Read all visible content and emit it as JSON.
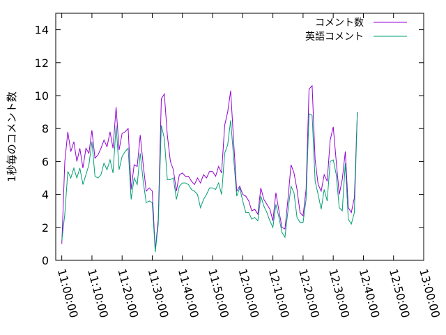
{
  "chart_data": {
    "type": "line",
    "title": "",
    "xlabel": "",
    "ylabel": "1秒毎のコメント数",
    "xlim": [
      "10:58:00",
      "13:00:00"
    ],
    "ylim": [
      0,
      15
    ],
    "yticks": [
      0,
      2,
      4,
      6,
      8,
      10,
      12,
      14
    ],
    "xticks": [
      "11:00:00",
      "11:10:00",
      "11:20:00",
      "11:30:00",
      "11:40:00",
      "11:50:00",
      "12:00:00",
      "12:10:00",
      "12:20:00",
      "12:30:00",
      "12:40:00",
      "12:50:00",
      "13:00:00"
    ],
    "grid": false,
    "legend_position": "top-right",
    "series": [
      {
        "name": "コメント数",
        "color": "#9400d3",
        "points": [
          [
            "11:00:00",
            1.0
          ],
          [
            "11:01:00",
            6.0
          ],
          [
            "11:02:00",
            7.8
          ],
          [
            "11:03:00",
            6.6
          ],
          [
            "11:04:00",
            7.2
          ],
          [
            "11:05:00",
            6.0
          ],
          [
            "11:06:00",
            6.8
          ],
          [
            "11:07:00",
            5.6
          ],
          [
            "11:08:00",
            6.8
          ],
          [
            "11:09:00",
            6.5
          ],
          [
            "11:10:00",
            7.9
          ],
          [
            "11:11:00",
            6.2
          ],
          [
            "11:12:00",
            6.4
          ],
          [
            "11:13:00",
            6.8
          ],
          [
            "11:14:00",
            7.3
          ],
          [
            "11:15:00",
            6.9
          ],
          [
            "11:16:00",
            7.8
          ],
          [
            "11:17:00",
            6.8
          ],
          [
            "11:18:00",
            9.3
          ],
          [
            "11:19:00",
            6.7
          ],
          [
            "11:20:00",
            7.7
          ],
          [
            "11:21:00",
            7.8
          ],
          [
            "11:22:00",
            8.0
          ],
          [
            "11:23:00",
            4.3
          ],
          [
            "11:24:00",
            5.8
          ],
          [
            "11:25:00",
            5.7
          ],
          [
            "11:26:00",
            7.6
          ],
          [
            "11:27:00",
            5.8
          ],
          [
            "11:28:00",
            4.2
          ],
          [
            "11:29:00",
            4.4
          ],
          [
            "11:30:00",
            4.2
          ],
          [
            "11:31:00",
            0.6
          ],
          [
            "11:32:00",
            2.5
          ],
          [
            "11:33:00",
            9.8
          ],
          [
            "11:34:00",
            10.1
          ],
          [
            "11:35:00",
            7.6
          ],
          [
            "11:36:00",
            6.0
          ],
          [
            "11:37:00",
            5.5
          ],
          [
            "11:38:00",
            4.2
          ],
          [
            "11:39:00",
            5.2
          ],
          [
            "11:40:00",
            5.3
          ],
          [
            "11:41:00",
            5.1
          ],
          [
            "11:42:00",
            5.1
          ],
          [
            "11:43:00",
            4.8
          ],
          [
            "11:44:00",
            4.6
          ],
          [
            "11:45:00",
            5.0
          ],
          [
            "11:46:00",
            4.7
          ],
          [
            "11:47:00",
            5.2
          ],
          [
            "11:48:00",
            5.0
          ],
          [
            "11:49:00",
            5.4
          ],
          [
            "11:50:00",
            5.4
          ],
          [
            "11:51:00",
            5.1
          ],
          [
            "11:52:00",
            5.7
          ],
          [
            "11:53:00",
            5.3
          ],
          [
            "11:54:00",
            8.2
          ],
          [
            "11:55:00",
            9.0
          ],
          [
            "11:56:00",
            10.3
          ],
          [
            "11:57:00",
            7.2
          ],
          [
            "11:58:00",
            4.2
          ],
          [
            "11:59:00",
            4.5
          ],
          [
            "12:00:00",
            4.0
          ],
          [
            "12:01:00",
            3.9
          ],
          [
            "12:02:00",
            3.6
          ],
          [
            "12:03:00",
            3.0
          ],
          [
            "12:04:00",
            3.1
          ],
          [
            "12:05:00",
            2.8
          ],
          [
            "12:06:00",
            4.4
          ],
          [
            "12:07:00",
            3.7
          ],
          [
            "12:08:00",
            3.4
          ],
          [
            "12:09:00",
            3.1
          ],
          [
            "12:10:00",
            2.4
          ],
          [
            "12:11:00",
            4.1
          ],
          [
            "12:12:00",
            3.0
          ],
          [
            "12:13:00",
            2.0
          ],
          [
            "12:14:00",
            1.9
          ],
          [
            "12:15:00",
            3.7
          ],
          [
            "12:16:00",
            5.8
          ],
          [
            "12:17:00",
            5.3
          ],
          [
            "12:18:00",
            4.3
          ],
          [
            "12:19:00",
            2.9
          ],
          [
            "12:20:00",
            2.7
          ],
          [
            "12:21:00",
            4.3
          ],
          [
            "12:22:00",
            10.4
          ],
          [
            "12:23:00",
            10.6
          ],
          [
            "12:24:00",
            6.1
          ],
          [
            "12:25:00",
            4.6
          ],
          [
            "12:26:00",
            4.2
          ],
          [
            "12:27:00",
            5.2
          ],
          [
            "12:28:00",
            4.8
          ],
          [
            "12:29:00",
            7.3
          ],
          [
            "12:30:00",
            8.1
          ],
          [
            "12:31:00",
            6.0
          ],
          [
            "12:32:00",
            4.0
          ],
          [
            "12:33:00",
            4.9
          ],
          [
            "12:34:00",
            6.6
          ],
          [
            "12:35:00",
            3.2
          ],
          [
            "12:36:00",
            2.9
          ],
          [
            "12:37:00",
            3.8
          ],
          [
            "12:38:00",
            9.0
          ]
        ]
      },
      {
        "name": "英語コメント",
        "color": "#009e73",
        "points": [
          [
            "11:00:00",
            1.2
          ],
          [
            "11:01:00",
            2.8
          ],
          [
            "11:02:00",
            5.4
          ],
          [
            "11:03:00",
            5.0
          ],
          [
            "11:04:00",
            5.6
          ],
          [
            "11:05:00",
            5.0
          ],
          [
            "11:06:00",
            5.6
          ],
          [
            "11:07:00",
            4.6
          ],
          [
            "11:08:00",
            5.2
          ],
          [
            "11:09:00",
            5.8
          ],
          [
            "11:10:00",
            7.2
          ],
          [
            "11:11:00",
            5.1
          ],
          [
            "11:12:00",
            5.0
          ],
          [
            "11:13:00",
            5.2
          ],
          [
            "11:14:00",
            5.9
          ],
          [
            "11:15:00",
            5.5
          ],
          [
            "11:16:00",
            6.1
          ],
          [
            "11:17:00",
            5.3
          ],
          [
            "11:18:00",
            8.2
          ],
          [
            "11:19:00",
            5.5
          ],
          [
            "11:20:00",
            6.3
          ],
          [
            "11:21:00",
            6.6
          ],
          [
            "11:22:00",
            6.8
          ],
          [
            "11:23:00",
            3.7
          ],
          [
            "11:24:00",
            5.0
          ],
          [
            "11:25:00",
            4.6
          ],
          [
            "11:26:00",
            6.5
          ],
          [
            "11:27:00",
            4.8
          ],
          [
            "11:28:00",
            3.5
          ],
          [
            "11:29:00",
            3.6
          ],
          [
            "11:30:00",
            3.5
          ],
          [
            "11:31:00",
            0.5
          ],
          [
            "11:32:00",
            2.2
          ],
          [
            "11:33:00",
            8.2
          ],
          [
            "11:34:00",
            7.4
          ],
          [
            "11:35:00",
            4.9
          ],
          [
            "11:36:00",
            4.9
          ],
          [
            "11:37:00",
            5.0
          ],
          [
            "11:38:00",
            3.7
          ],
          [
            "11:39:00",
            4.5
          ],
          [
            "11:40:00",
            4.7
          ],
          [
            "11:41:00",
            4.7
          ],
          [
            "11:42:00",
            4.6
          ],
          [
            "11:43:00",
            4.3
          ],
          [
            "11:44:00",
            4.2
          ],
          [
            "11:45:00",
            4.0
          ],
          [
            "11:46:00",
            3.2
          ],
          [
            "11:47:00",
            3.7
          ],
          [
            "11:48:00",
            4.0
          ],
          [
            "11:49:00",
            4.4
          ],
          [
            "11:50:00",
            4.4
          ],
          [
            "11:51:00",
            4.3
          ],
          [
            "11:52:00",
            4.7
          ],
          [
            "11:53:00",
            4.0
          ],
          [
            "11:54:00",
            6.5
          ],
          [
            "11:55:00",
            7.0
          ],
          [
            "11:56:00",
            8.5
          ],
          [
            "11:57:00",
            6.2
          ],
          [
            "11:58:00",
            3.9
          ],
          [
            "11:59:00",
            4.4
          ],
          [
            "12:00:00",
            3.6
          ],
          [
            "12:01:00",
            2.9
          ],
          [
            "12:02:00",
            2.9
          ],
          [
            "12:03:00",
            2.5
          ],
          [
            "12:04:00",
            2.6
          ],
          [
            "12:05:00",
            2.4
          ],
          [
            "12:06:00",
            3.9
          ],
          [
            "12:07:00",
            3.3
          ],
          [
            "12:08:00",
            2.9
          ],
          [
            "12:09:00",
            2.4
          ],
          [
            "12:10:00",
            2.0
          ],
          [
            "12:11:00",
            3.4
          ],
          [
            "12:12:00",
            2.6
          ],
          [
            "12:13:00",
            1.7
          ],
          [
            "12:14:00",
            1.4
          ],
          [
            "12:15:00",
            3.0
          ],
          [
            "12:16:00",
            4.5
          ],
          [
            "12:17:00",
            4.1
          ],
          [
            "12:18:00",
            2.6
          ],
          [
            "12:19:00",
            2.3
          ],
          [
            "12:20:00",
            2.3
          ],
          [
            "12:21:00",
            3.7
          ],
          [
            "12:22:00",
            8.9
          ],
          [
            "12:23:00",
            8.8
          ],
          [
            "12:24:00",
            4.8
          ],
          [
            "12:25:00",
            4.0
          ],
          [
            "12:26:00",
            3.1
          ],
          [
            "12:27:00",
            4.3
          ],
          [
            "12:28:00",
            3.6
          ],
          [
            "12:29:00",
            6.0
          ],
          [
            "12:30:00",
            6.1
          ],
          [
            "12:31:00",
            5.2
          ],
          [
            "12:32:00",
            3.2
          ],
          [
            "12:33:00",
            3.0
          ],
          [
            "12:34:00",
            5.9
          ],
          [
            "12:35:00",
            2.5
          ],
          [
            "12:36:00",
            2.2
          ],
          [
            "12:37:00",
            2.9
          ],
          [
            "12:38:00",
            9.0
          ]
        ]
      }
    ]
  }
}
